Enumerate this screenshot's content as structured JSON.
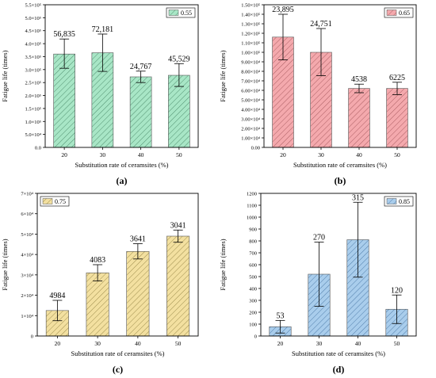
{
  "chart_data": [
    {
      "type": "bar",
      "panel_label": "(a)",
      "categories": [
        "20",
        "30",
        "40",
        "50"
      ],
      "values": [
        360000,
        365000,
        272000,
        278000
      ],
      "error_bars": [
        [
          305000,
          418000
        ],
        [
          293000,
          437000
        ],
        [
          250000,
          294000
        ],
        [
          235000,
          323000
        ]
      ],
      "data_labels": [
        "56,835",
        "72,181",
        "24,767",
        "45,529"
      ],
      "legend": "0.55",
      "color": "#a8e6c6",
      "hatch": "#3a7a5a",
      "xlabel": "Substitution rate of ceramsites (%)",
      "ylabel": "Fatigue life (times)",
      "ylim": [
        0,
        550000
      ],
      "yticks": [
        "0.0",
        "5.0×10⁴",
        "1.0×10⁵",
        "1.5×10⁵",
        "2.0×10⁵",
        "2.5×10⁵",
        "3.0×10⁵",
        "3.5×10⁵",
        "4.0×10⁵",
        "4.5×10⁵",
        "5.0×10⁵",
        "5.5×10⁵"
      ],
      "legend_position": "top-right"
    },
    {
      "type": "bar",
      "panel_label": "(b)",
      "categories": [
        "20",
        "30",
        "40",
        "50"
      ],
      "values": [
        116000,
        100000,
        62000,
        62000
      ],
      "error_bars": [
        [
          92000,
          140000
        ],
        [
          75500,
          125000
        ],
        [
          57500,
          66500
        ],
        [
          55500,
          68500
        ]
      ],
      "data_labels": [
        "23,895",
        "24,751",
        "4538",
        "6225"
      ],
      "legend": "0.65",
      "color": "#f4a9ad",
      "hatch": "#9a4a50",
      "xlabel": "Substitution rate of ceramsites (%)",
      "ylabel": "Fatigue life (times)",
      "ylim": [
        0,
        150000
      ],
      "yticks": [
        "0.00",
        "1.00×10⁴",
        "2.00×10⁴",
        "3.00×10⁴",
        "4.00×10⁴",
        "5.00×10⁴",
        "6.00×10⁴",
        "7.00×10⁴",
        "8.00×10⁴",
        "9.00×10⁴",
        "1.00×10⁵",
        "1.10×10⁵",
        "1.20×10⁵",
        "1.30×10⁵",
        "1.40×10⁵",
        "1.50×10⁵"
      ],
      "legend_position": "top-right"
    },
    {
      "type": "bar",
      "panel_label": "(c)",
      "categories": [
        "20",
        "30",
        "40",
        "50"
      ],
      "values": [
        12500,
        31000,
        41500,
        49000
      ],
      "error_bars": [
        [
          7500,
          17500
        ],
        [
          27000,
          35000
        ],
        [
          37800,
          45300
        ],
        [
          46000,
          52000
        ]
      ],
      "data_labels": [
        "4984",
        "4083",
        "3641",
        "3041"
      ],
      "legend": "0.75",
      "color": "#f3e0a0",
      "hatch": "#8a7a3a",
      "xlabel": "Substitution rate of ceramsites (%)",
      "ylabel": "Fatigue life (times)",
      "ylim": [
        0,
        70000
      ],
      "yticks": [
        "0",
        "1×10⁴",
        "2×10⁴",
        "3×10⁴",
        "4×10⁴",
        "5×10⁴",
        "6×10⁴",
        "7×10⁴"
      ],
      "legend_position": "top-left"
    },
    {
      "type": "bar",
      "panel_label": "(d)",
      "categories": [
        "20",
        "30",
        "40",
        "50"
      ],
      "values": [
        78,
        520,
        810,
        225
      ],
      "error_bars": [
        [
          25,
          131
        ],
        [
          250,
          790
        ],
        [
          495,
          1125
        ],
        [
          105,
          345
        ]
      ],
      "data_labels": [
        "53",
        "270",
        "315",
        "120"
      ],
      "legend": "0.85",
      "color": "#a9cdec",
      "hatch": "#3a6a9a",
      "xlabel": "Substitution rate of ceramsites (%)",
      "ylabel": "Fatigue life (times)",
      "ylim": [
        0,
        1200
      ],
      "yticks": [
        "0",
        "100",
        "200",
        "300",
        "400",
        "500",
        "600",
        "700",
        "800",
        "900",
        "1000",
        "1100",
        "1200"
      ],
      "legend_position": "top-right"
    }
  ]
}
